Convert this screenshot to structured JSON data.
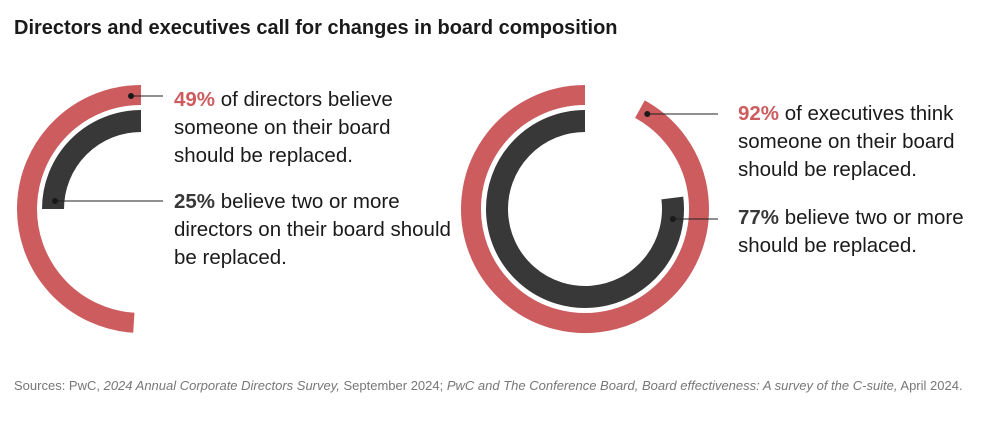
{
  "title": "Directors and executives call for changes in board composition",
  "colors": {
    "red": "#cd5c5f",
    "dark": "#383838"
  },
  "chart_data": [
    {
      "type": "radial-bar",
      "series": [
        {
          "name": "Directors: someone should be replaced",
          "value": 49,
          "color": "#cd5c5f"
        },
        {
          "name": "Directors: two or more should be replaced",
          "value": 25,
          "color": "#383838"
        }
      ],
      "annotations": [
        {
          "value_label": "49%",
          "text": " of directors believe someone on their board should be replaced."
        },
        {
          "value_label": "25%",
          "text": " believe two or more directors on their board should be replaced."
        }
      ]
    },
    {
      "type": "radial-bar",
      "series": [
        {
          "name": "Executives: someone should be replaced",
          "value": 92,
          "color": "#cd5c5f"
        },
        {
          "name": "Executives: two or more should be replaced",
          "value": 77,
          "color": "#383838"
        }
      ],
      "annotations": [
        {
          "value_label": "92%",
          "text": " of executives think someone on their board should be replaced."
        },
        {
          "value_label": "77%",
          "text": " believe two or more should be replaced."
        }
      ]
    }
  ],
  "sources": {
    "prefix": "Sources: PwC, ",
    "s1": "2024 Annual Corporate Directors Survey,",
    "mid": " September 2024; ",
    "s2": "PwC and The Conference Board, Board effectiveness: A survey of the C-suite,",
    "suffix": " April 2024."
  }
}
